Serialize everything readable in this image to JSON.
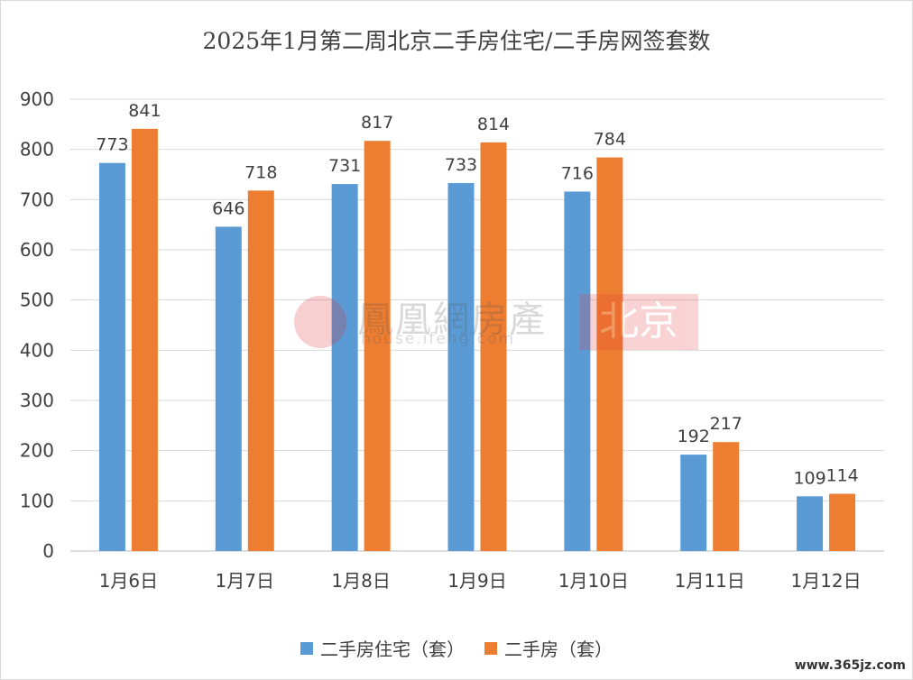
{
  "chart_data": {
    "type": "bar",
    "title": "2025年1月第二周北京二手房住宅/二手房网签套数",
    "categories": [
      "1月6日",
      "1月7日",
      "1月8日",
      "1月9日",
      "1月10日",
      "1月11日",
      "1月12日"
    ],
    "series": [
      {
        "name": "二手房住宅（套）",
        "color": "#5b9bd5",
        "values": [
          773,
          646,
          731,
          733,
          716,
          192,
          109
        ]
      },
      {
        "name": "二手房（套）",
        "color": "#ed7d31",
        "values": [
          841,
          718,
          817,
          814,
          784,
          217,
          114
        ]
      }
    ],
    "ylim": [
      0,
      900
    ],
    "yticks": [
      0,
      100,
      200,
      300,
      400,
      500,
      600,
      700,
      800,
      900
    ],
    "grid": true,
    "legend_position": "bottom"
  },
  "watermark": {
    "text": "鳳凰網房產",
    "url": "house.ifeng.com",
    "city": "北京"
  },
  "corner_mark": "www.365jz.com"
}
